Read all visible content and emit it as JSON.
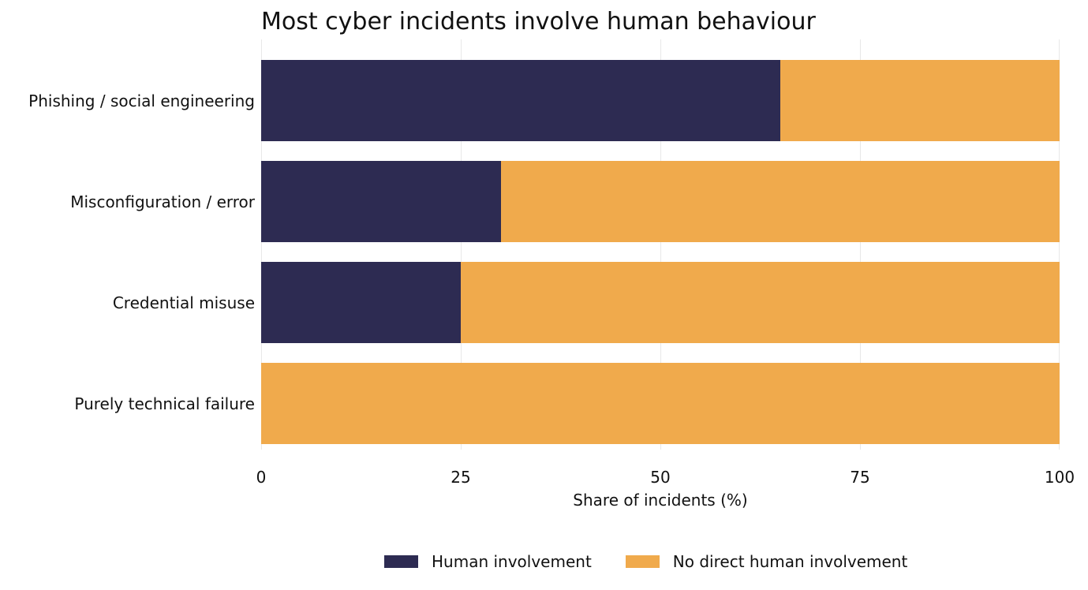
{
  "chart_data": {
    "type": "bar",
    "orientation": "horizontal",
    "stacked": true,
    "title": "Most cyber incidents involve human behaviour",
    "xlabel": "Share of incidents (%)",
    "ylabel": "",
    "xlim": [
      0,
      100
    ],
    "xticks": [
      "0",
      "25",
      "50",
      "75",
      "100"
    ],
    "grid": true,
    "legend_position": "bottom",
    "categories": [
      "Phishing / social engineering",
      "Misconfiguration / error",
      "Credential misuse",
      "Purely technical failure"
    ],
    "series": [
      {
        "name": "Human involvement",
        "color": "#2d2b52",
        "values": [
          65,
          30,
          25,
          0
        ]
      },
      {
        "name": "No direct human involvement",
        "color": "#f0aa4c",
        "values": [
          35,
          70,
          75,
          100
        ]
      }
    ]
  }
}
